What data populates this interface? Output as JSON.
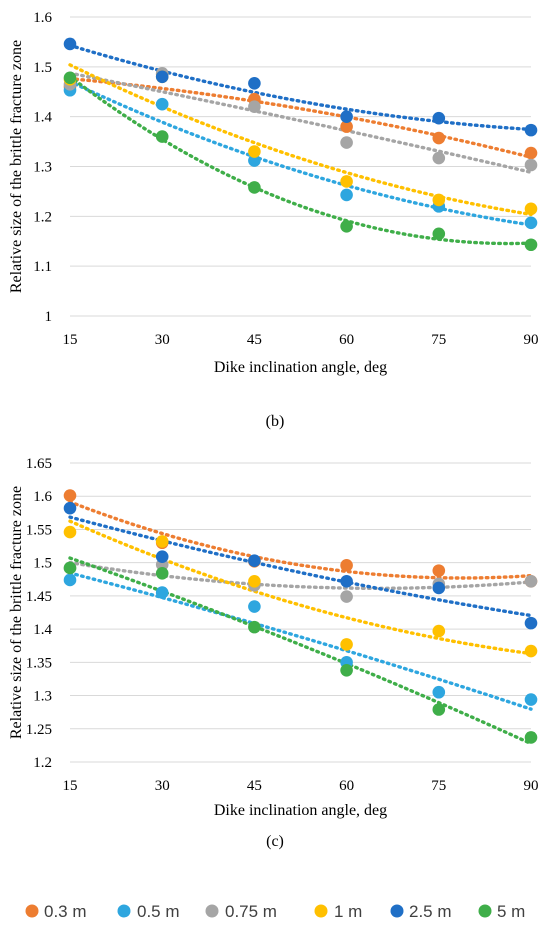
{
  "colors": {
    "0.3 m": "#ed7d31",
    "0.5 m": "#2ea6df",
    "0.75 m": "#a5a5a5",
    "1 m": "#ffc000",
    "2.5 m": "#1f6fc6",
    "5 m": "#3fae49"
  },
  "legend": [
    "0.3 m",
    "0.5 m",
    "0.75 m",
    "1 m",
    "2.5 m",
    "5 m"
  ],
  "chart_data": [
    {
      "type": "scatter",
      "caption": "(b)",
      "xlabel": "Dike inclination angle, deg",
      "ylabel": "Relative size of the brittle fracture zone",
      "x": [
        15,
        30,
        45,
        60,
        75,
        90
      ],
      "xlim": [
        15,
        90
      ],
      "ylim": [
        1,
        1.6
      ],
      "xticks": [
        "15",
        "30",
        "45",
        "60",
        "75",
        "90"
      ],
      "yticks": [
        "1",
        "1.1",
        "1.2",
        "1.3",
        "1.4",
        "1.5",
        "1.6"
      ],
      "grid": "horizontal",
      "trendline": "polynomial",
      "series": [
        {
          "name": "0.3 m",
          "values": [
            1.46,
            1.485,
            1.435,
            1.38,
            1.357,
            1.327
          ]
        },
        {
          "name": "0.5 m",
          "values": [
            1.453,
            1.425,
            1.312,
            1.243,
            1.22,
            1.187
          ]
        },
        {
          "name": "0.75 m",
          "values": [
            1.465,
            1.487,
            1.42,
            1.348,
            1.317,
            1.303
          ]
        },
        {
          "name": "1 m",
          "values": [
            1.475,
            1.48,
            1.33,
            1.27,
            1.233,
            1.215
          ]
        },
        {
          "name": "2.5 m",
          "values": [
            1.546,
            1.48,
            1.467,
            1.4,
            1.397,
            1.373
          ]
        },
        {
          "name": "5 m",
          "values": [
            1.478,
            1.36,
            1.258,
            1.18,
            1.165,
            1.143
          ]
        }
      ]
    },
    {
      "type": "scatter",
      "caption": "(c)",
      "xlabel": "Dike inclination angle, deg",
      "ylabel": "Relative size of the brittle fracture zone",
      "x": [
        15,
        30,
        45,
        60,
        75,
        90
      ],
      "xlim": [
        15,
        90
      ],
      "ylim": [
        1.2,
        1.65
      ],
      "xticks": [
        "15",
        "30",
        "45",
        "60",
        "75",
        "90"
      ],
      "yticks": [
        "1.2",
        "1.25",
        "1.3",
        "1.35",
        "1.4",
        "1.45",
        "1.5",
        "1.55",
        "1.6",
        "1.65"
      ],
      "grid": "horizontal",
      "trendline": "polynomial",
      "series": [
        {
          "name": "0.3 m",
          "values": [
            1.601,
            1.53,
            1.502,
            1.496,
            1.488,
            1.472
          ]
        },
        {
          "name": "0.5 m",
          "values": [
            1.474,
            1.455,
            1.434,
            1.35,
            1.305,
            1.294
          ]
        },
        {
          "name": "0.75 m",
          "values": [
            1.492,
            1.497,
            1.466,
            1.449,
            1.468,
            1.472
          ]
        },
        {
          "name": "1 m",
          "values": [
            1.546,
            1.532,
            1.472,
            1.377,
            1.397,
            1.367
          ]
        },
        {
          "name": "2.5 m",
          "values": [
            1.582,
            1.509,
            1.503,
            1.472,
            1.462,
            1.409
          ]
        },
        {
          "name": "5 m",
          "values": [
            1.492,
            1.484,
            1.403,
            1.338,
            1.279,
            1.237
          ]
        }
      ]
    }
  ]
}
